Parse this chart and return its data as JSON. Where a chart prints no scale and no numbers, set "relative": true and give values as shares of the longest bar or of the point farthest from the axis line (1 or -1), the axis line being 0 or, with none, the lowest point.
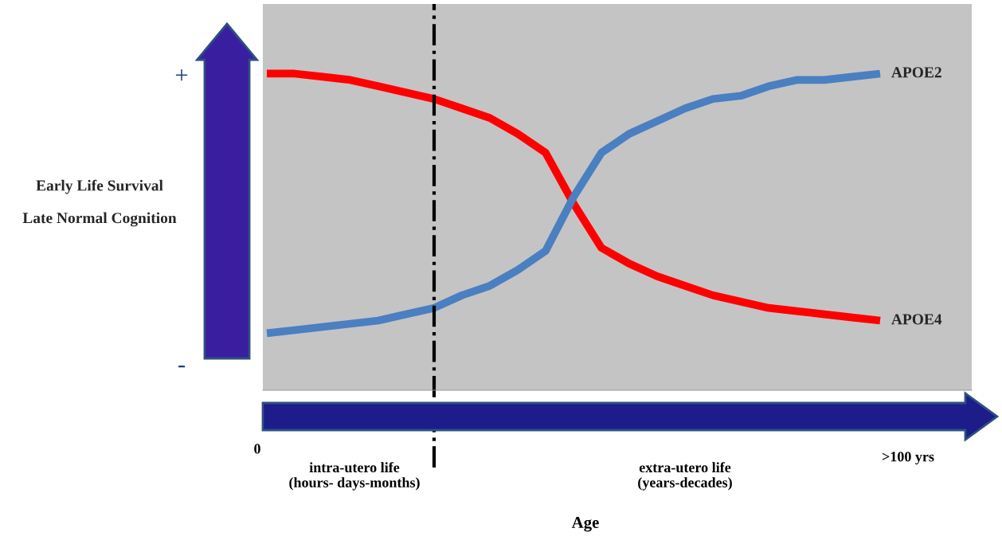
{
  "chart_data": {
    "type": "line",
    "relative": true,
    "ylabel": "Early Life Survival\n\nLate Normal Cognition",
    "categories": [
      null,
      null,
      null,
      null,
      null,
      null,
      null,
      null,
      null,
      null,
      null,
      null,
      null,
      null,
      null,
      null,
      null,
      null,
      null,
      null,
      null,
      null,
      null
    ],
    "series": [
      {
        "name": "APOE4",
        "color": "#ff0000",
        "values": [
          1.0,
          1.0,
          0.99,
          0.98,
          0.96,
          0.94,
          0.92,
          0.89,
          0.86,
          0.81,
          0.75,
          0.59,
          0.45,
          0.4,
          0.36,
          0.33,
          0.3,
          0.28,
          0.26,
          0.25,
          0.24,
          0.23,
          0.22
        ]
      },
      {
        "name": "APOE2",
        "color": "#4a7fc1",
        "values": [
          0.18,
          0.19,
          0.2,
          0.21,
          0.22,
          0.24,
          0.26,
          0.3,
          0.33,
          0.38,
          0.44,
          0.61,
          0.75,
          0.81,
          0.85,
          0.89,
          0.92,
          0.93,
          0.96,
          0.98,
          0.98,
          0.99,
          1.0
        ]
      }
    ],
    "annotations": [
      "+",
      "-",
      "0",
      ">100 yrs",
      "intra-utero life\n(hours- days-months)",
      "extra-utero life\n(years-decades)",
      "Age"
    ],
    "legend": false,
    "line_style": "solid",
    "marker": "none"
  }
}
